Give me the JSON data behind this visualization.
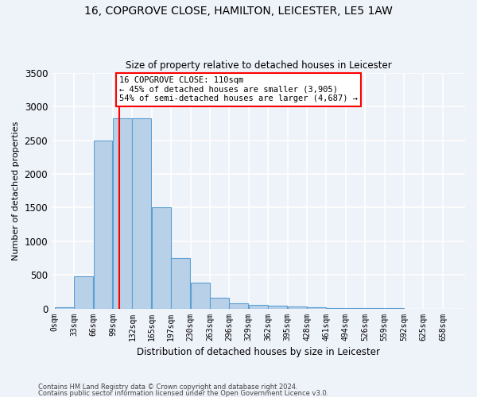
{
  "title_line1": "16, COPGROVE CLOSE, HAMILTON, LEICESTER, LE5 1AW",
  "title_line2": "Size of property relative to detached houses in Leicester",
  "xlabel": "Distribution of detached houses by size in Leicester",
  "ylabel": "Number of detached properties",
  "bar_labels": [
    "0sqm",
    "33sqm",
    "66sqm",
    "99sqm",
    "132sqm",
    "165sqm",
    "197sqm",
    "230sqm",
    "263sqm",
    "296sqm",
    "329sqm",
    "362sqm",
    "395sqm",
    "428sqm",
    "461sqm",
    "494sqm",
    "526sqm",
    "559sqm",
    "592sqm",
    "625sqm",
    "658sqm"
  ],
  "bar_values": [
    20,
    480,
    2500,
    2830,
    2830,
    1500,
    750,
    380,
    155,
    75,
    50,
    45,
    30,
    20,
    5,
    2,
    1,
    1,
    0,
    0,
    0
  ],
  "bar_color": "#b8d0e8",
  "bar_edge_color": "#5a9fd4",
  "ylim": [
    0,
    3500
  ],
  "yticks": [
    0,
    500,
    1000,
    1500,
    2000,
    2500,
    3000,
    3500
  ],
  "property_sqm": 110,
  "bin_size": 33,
  "annotation_title": "16 COPGROVE CLOSE: 110sqm",
  "annotation_line1": "← 45% of detached houses are smaller (3,905)",
  "annotation_line2": "54% of semi-detached houses are larger (4,687) →",
  "footnote1": "Contains HM Land Registry data © Crown copyright and database right 2024.",
  "footnote2": "Contains public sector information licensed under the Open Government Licence v3.0.",
  "bg_color": "#eef2f9",
  "grid_color": "#ffffff"
}
